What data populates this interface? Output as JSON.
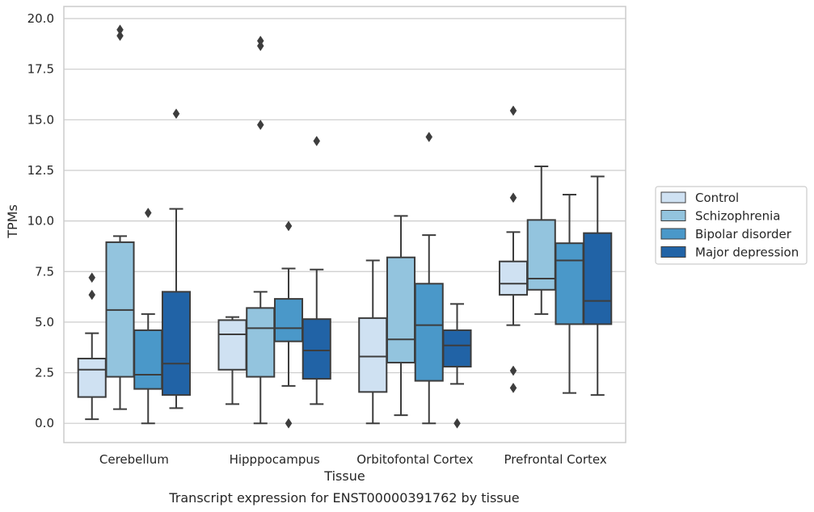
{
  "chart_data": {
    "type": "boxplot",
    "xlabel": "Tissue",
    "ylabel": "TPMs",
    "caption": "Transcript expression for ENST00000391762 by tissue",
    "ylim": [
      -0.95,
      20.6
    ],
    "yticks": [
      "0.0",
      "2.5",
      "5.0",
      "7.5",
      "10.0",
      "12.5",
      "15.0",
      "17.5",
      "20.0"
    ],
    "grid": "horizontal",
    "legend_position": "right",
    "categories": [
      "Cerebellum",
      "Hipppocampus",
      "Orbitofontal Cortex",
      "Prefrontal Cortex"
    ],
    "series": [
      {
        "name": "Control",
        "color": "#cfe1f2",
        "boxes": [
          {
            "whislo": 0.2,
            "q1": 1.3,
            "med": 2.65,
            "q3": 3.2,
            "whishi": 4.45,
            "fliers": [
              6.35,
              7.2
            ]
          },
          {
            "whislo": 0.95,
            "q1": 2.65,
            "med": 4.4,
            "q3": 5.1,
            "whishi": 5.25,
            "fliers": []
          },
          {
            "whislo": 0.0,
            "q1": 1.55,
            "med": 3.3,
            "q3": 5.2,
            "whishi": 8.05,
            "fliers": []
          },
          {
            "whislo": 4.85,
            "q1": 6.35,
            "med": 6.9,
            "q3": 8.0,
            "whishi": 9.45,
            "fliers": [
              1.75,
              2.6,
              11.15,
              15.45
            ]
          }
        ]
      },
      {
        "name": "Schizophrenia",
        "color": "#93c4de",
        "boxes": [
          {
            "whislo": 0.7,
            "q1": 2.3,
            "med": 5.6,
            "q3": 8.95,
            "whishi": 9.25,
            "fliers": [
              19.15,
              19.45
            ]
          },
          {
            "whislo": 0.0,
            "q1": 2.3,
            "med": 4.7,
            "q3": 5.7,
            "whishi": 6.5,
            "fliers": [
              14.75,
              18.65,
              18.9
            ]
          },
          {
            "whislo": 0.4,
            "q1": 3.0,
            "med": 4.15,
            "q3": 8.2,
            "whishi": 10.25,
            "fliers": []
          },
          {
            "whislo": 5.4,
            "q1": 6.6,
            "med": 7.15,
            "q3": 10.05,
            "whishi": 12.7,
            "fliers": []
          }
        ]
      },
      {
        "name": "Bipolar disorder",
        "color": "#4a98c9",
        "boxes": [
          {
            "whislo": 0.0,
            "q1": 1.7,
            "med": 2.4,
            "q3": 4.6,
            "whishi": 5.4,
            "fliers": [
              10.4
            ]
          },
          {
            "whislo": 1.85,
            "q1": 4.05,
            "med": 4.7,
            "q3": 6.15,
            "whishi": 7.65,
            "fliers": [
              0.0,
              9.75
            ]
          },
          {
            "whislo": 0.0,
            "q1": 2.1,
            "med": 4.85,
            "q3": 6.9,
            "whishi": 9.3,
            "fliers": [
              14.15
            ]
          },
          {
            "whislo": 1.5,
            "q1": 4.9,
            "med": 8.05,
            "q3": 8.9,
            "whishi": 11.3,
            "fliers": []
          }
        ]
      },
      {
        "name": "Major depression",
        "color": "#2163a6",
        "boxes": [
          {
            "whislo": 0.75,
            "q1": 1.4,
            "med": 2.95,
            "q3": 6.5,
            "whishi": 10.6,
            "fliers": [
              15.3
            ]
          },
          {
            "whislo": 0.95,
            "q1": 2.2,
            "med": 3.6,
            "q3": 5.15,
            "whishi": 7.6,
            "fliers": [
              13.95
            ]
          },
          {
            "whislo": 1.95,
            "q1": 2.8,
            "med": 3.85,
            "q3": 4.6,
            "whishi": 5.9,
            "fliers": [
              0.0
            ]
          },
          {
            "whislo": 1.4,
            "q1": 4.9,
            "med": 6.05,
            "q3": 9.4,
            "whishi": 12.2,
            "fliers": []
          }
        ]
      }
    ]
  }
}
